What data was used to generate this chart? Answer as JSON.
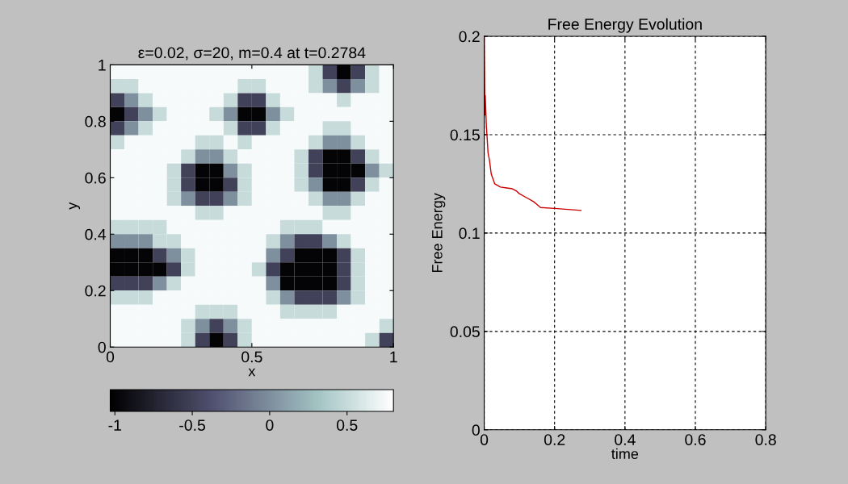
{
  "chart_data": [
    {
      "type": "heatmap",
      "title": "ε=0.02, σ=20, m=0.4 at t=0.2784",
      "xlabel": "x",
      "ylabel": "y",
      "x": [
        0.025,
        0.075,
        0.125,
        0.175,
        0.225,
        0.275,
        0.325,
        0.375,
        0.425,
        0.475,
        0.525,
        0.575,
        0.625,
        0.675,
        0.725,
        0.775,
        0.825,
        0.875,
        0.925,
        0.975
      ],
      "y": [
        0.975,
        0.925,
        0.875,
        0.825,
        0.775,
        0.725,
        0.675,
        0.625,
        0.575,
        0.525,
        0.475,
        0.425,
        0.375,
        0.325,
        0.275,
        0.225,
        0.175,
        0.125,
        0.075,
        0.025
      ],
      "xlim": [
        0,
        1
      ],
      "xticks": [
        0,
        0.5,
        1
      ],
      "ylim": [
        0,
        1
      ],
      "yticks": [
        0,
        0.2,
        0.4,
        0.6,
        0.8,
        1
      ],
      "clim": [
        -1.03,
        0.8
      ],
      "cticks": [
        -1,
        -0.5,
        0,
        0.5
      ],
      "cells": [
        [
          0.75,
          0.75,
          0.75,
          0.75,
          0.75,
          0.75,
          0.75,
          0.75,
          0.75,
          0.75,
          0.75,
          0.75,
          0.75,
          0.75,
          0.5,
          -0.5,
          -1,
          -0.5,
          0.5,
          0.75
        ],
        [
          0.5,
          0.5,
          0.75,
          0.75,
          0.75,
          0.75,
          0.75,
          0.75,
          0.75,
          0.5,
          0.5,
          0.75,
          0.75,
          0.75,
          0.5,
          0,
          -0.5,
          0,
          0.5,
          0.75
        ],
        [
          -0.5,
          0,
          0.5,
          0.75,
          0.75,
          0.75,
          0.75,
          0.75,
          0.5,
          -0.5,
          -0.5,
          0.5,
          0.75,
          0.75,
          0.75,
          0.75,
          0.5,
          0.75,
          0.75,
          0.75
        ],
        [
          -1,
          -0.5,
          0,
          0.5,
          0.75,
          0.75,
          0.75,
          0.5,
          0,
          -1,
          -1,
          0,
          0.5,
          0.75,
          0.75,
          0.75,
          0.75,
          0.75,
          0.75,
          0.75
        ],
        [
          -0.5,
          0,
          0.5,
          0.75,
          0.75,
          0.75,
          0.75,
          0.75,
          0.5,
          -0.5,
          -0.5,
          0.5,
          0.75,
          0.75,
          0.75,
          0.5,
          0.5,
          0.75,
          0.75,
          0.75
        ],
        [
          0.5,
          0.75,
          0.75,
          0.75,
          0.75,
          0.75,
          0.5,
          0.5,
          0.75,
          0.5,
          0.75,
          0.75,
          0.75,
          0.75,
          0.5,
          0,
          0,
          0.5,
          0.75,
          0.75
        ],
        [
          0.75,
          0.75,
          0.75,
          0.75,
          0.75,
          0.5,
          0,
          0,
          0.5,
          0.75,
          0.75,
          0.75,
          0.75,
          0.5,
          -0.5,
          -1,
          -1,
          -0.5,
          0.5,
          0.75
        ],
        [
          0.75,
          0.75,
          0.75,
          0.75,
          0.5,
          -0.5,
          -1,
          -1,
          0,
          0.5,
          0.75,
          0.75,
          0.75,
          0.5,
          -0.5,
          -1,
          -1,
          -1,
          0,
          0.5
        ],
        [
          0.75,
          0.75,
          0.75,
          0.75,
          0.5,
          -0.5,
          -1,
          -1,
          -0.5,
          0.5,
          0.75,
          0.75,
          0.75,
          0.5,
          0,
          -1,
          -1,
          -0.5,
          0.5,
          0.75
        ],
        [
          0.75,
          0.75,
          0.75,
          0.75,
          0.5,
          0,
          -0.5,
          -0.5,
          0,
          0.5,
          0.75,
          0.75,
          0.75,
          0.75,
          0.5,
          0,
          0,
          0.5,
          0.75,
          0.75
        ],
        [
          0.75,
          0.75,
          0.75,
          0.75,
          0.75,
          0.75,
          0.5,
          0.5,
          0.75,
          0.75,
          0.75,
          0.75,
          0.75,
          0.75,
          0.75,
          0.5,
          0.5,
          0.75,
          0.75,
          0.75
        ],
        [
          0.5,
          0.5,
          0.5,
          0.5,
          0.75,
          0.75,
          0.75,
          0.75,
          0.75,
          0.75,
          0.75,
          0.75,
          0.5,
          0.5,
          0.5,
          0.75,
          0.75,
          0.75,
          0.75,
          0.75
        ],
        [
          0,
          0,
          0,
          0.5,
          0.5,
          0.75,
          0.75,
          0.75,
          0.75,
          0.75,
          0.75,
          0.5,
          0,
          -0.5,
          -0.5,
          0,
          0.5,
          0.75,
          0.75,
          0.75
        ],
        [
          -1,
          -1,
          -1,
          -0.5,
          0,
          0.5,
          0.75,
          0.75,
          0.75,
          0.75,
          0.75,
          0,
          -0.5,
          -1,
          -1,
          -1,
          -0.5,
          0.5,
          0.75,
          0.75
        ],
        [
          -1,
          -1,
          -1,
          -1,
          -0.5,
          0.5,
          0.75,
          0.75,
          0.75,
          0.75,
          0.5,
          -0.5,
          -1,
          -1,
          -1,
          -1,
          -0.5,
          0.5,
          0.75,
          0.75
        ],
        [
          -0.5,
          -0.5,
          -0.5,
          0,
          0.5,
          0.75,
          0.75,
          0.75,
          0.75,
          0.75,
          0.75,
          0,
          -1,
          -1,
          -1,
          -1,
          -0.5,
          0.5,
          0.75,
          0.75
        ],
        [
          0.5,
          0.5,
          0.5,
          0.75,
          0.75,
          0.75,
          0.75,
          0.75,
          0.75,
          0.75,
          0.75,
          0.5,
          0,
          -0.5,
          -0.5,
          -0.5,
          0,
          0.5,
          0.75,
          0.75
        ],
        [
          0.75,
          0.75,
          0.75,
          0.75,
          0.75,
          0.75,
          0.5,
          0.5,
          0.5,
          0.75,
          0.75,
          0.75,
          0.5,
          0.5,
          0.5,
          0.5,
          0.75,
          0.75,
          0.75,
          0.75
        ],
        [
          0.75,
          0.75,
          0.75,
          0.75,
          0.75,
          0.5,
          0,
          -0.5,
          0,
          0.5,
          0.75,
          0.75,
          0.75,
          0.75,
          0.75,
          0.75,
          0.75,
          0.75,
          0.75,
          0.5
        ],
        [
          0.75,
          0.75,
          0.75,
          0.75,
          0.75,
          0.5,
          -0.5,
          -1,
          -0.5,
          0.5,
          0.75,
          0.75,
          0.75,
          0.75,
          0.75,
          0.75,
          0.75,
          0.75,
          0.5,
          -0.5
        ]
      ]
    },
    {
      "type": "line",
      "title": "Free Energy Evolution",
      "xlabel": "time",
      "ylabel": "Free Energy",
      "xlim": [
        0,
        0.8
      ],
      "xticks": [
        0,
        0.2,
        0.4,
        0.6,
        0.8
      ],
      "ylim": [
        0,
        0.2
      ],
      "yticks": [
        0,
        0.05,
        0.1,
        0.15,
        0.2
      ],
      "grid": true,
      "legend": false,
      "series": [
        {
          "color": "#cc0000",
          "x": [
            0,
            0.002,
            0.003,
            0.006,
            0.011,
            0.015,
            0.02,
            0.03,
            0.046,
            0.06,
            0.08,
            0.092,
            0.1,
            0.12,
            0.14,
            0.15,
            0.16,
            0.2,
            0.275
          ],
          "values": [
            0.2,
            0.16,
            0.17,
            0.155,
            0.1406,
            0.137,
            0.13,
            0.125,
            0.1234,
            0.123,
            0.1225,
            0.1213,
            0.12,
            0.118,
            0.116,
            0.1145,
            0.113,
            0.1125,
            0.1115
          ]
        }
      ]
    }
  ]
}
